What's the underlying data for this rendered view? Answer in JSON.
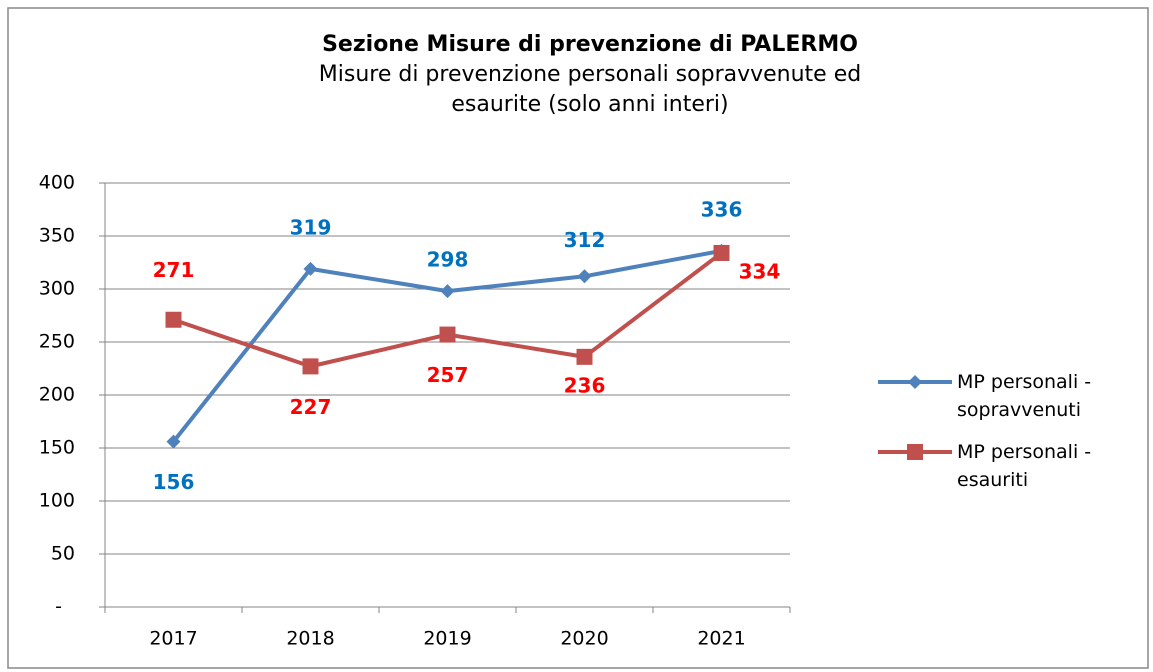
{
  "chart_data": {
    "type": "line",
    "title": "Sezione Misure di prevenzione di PALERMO",
    "subtitle": "Misure di prevenzione personali sopravvenute ed esaurite (solo anni interi)",
    "categories": [
      "2017",
      "2018",
      "2019",
      "2020",
      "2021"
    ],
    "series": [
      {
        "name": "MP personali - sopravvenuti",
        "color": "#4f81bd",
        "label_color": "#0070c0",
        "marker": "diamond",
        "values": [
          156,
          319,
          298,
          312,
          336
        ]
      },
      {
        "name": "MP personali - esauriti",
        "color": "#c0504d",
        "label_color": "#ff0000",
        "marker": "square",
        "values": [
          271,
          227,
          257,
          236,
          334
        ]
      }
    ],
    "ylim": [
      0,
      400
    ],
    "yticks": [
      {
        "value": 0,
        "label": "-"
      },
      50,
      100,
      150,
      200,
      250,
      300,
      350,
      400
    ],
    "grid": true,
    "legend": "right"
  }
}
